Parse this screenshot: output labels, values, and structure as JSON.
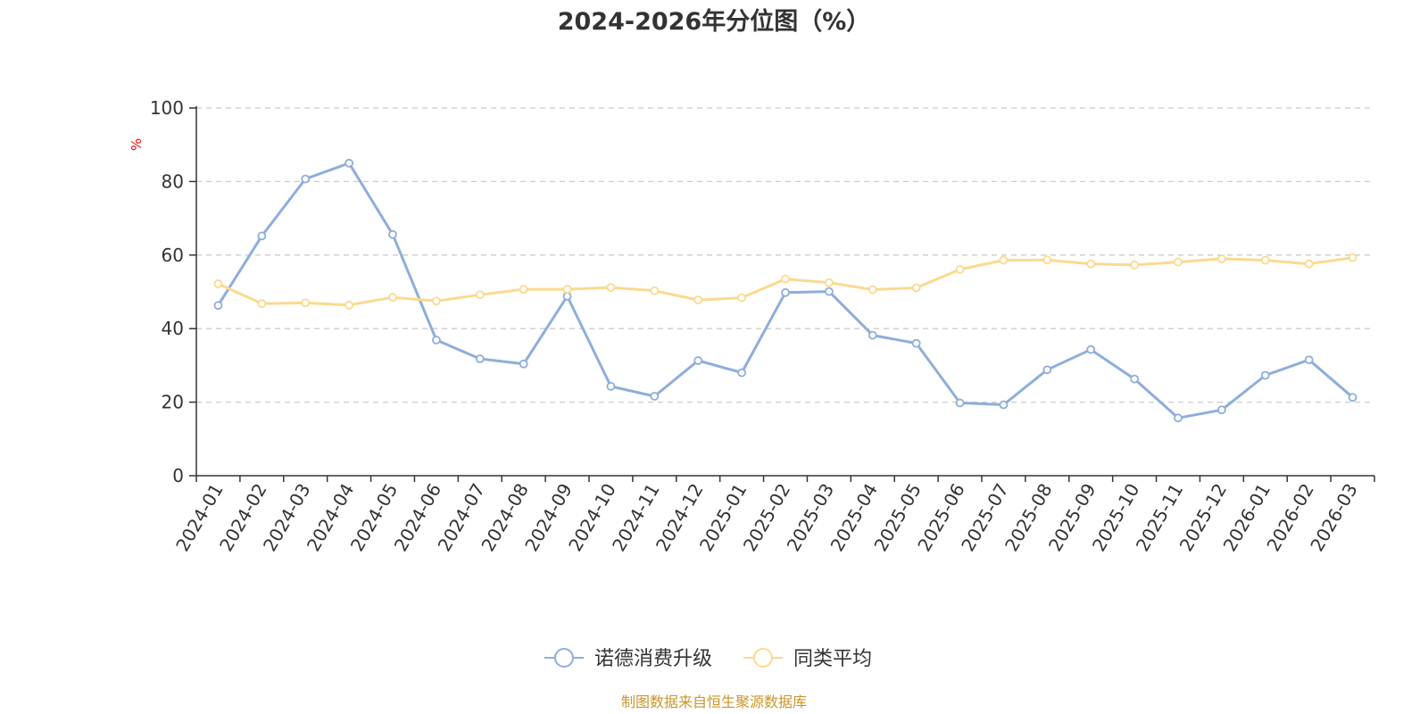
{
  "chart_data": {
    "type": "line",
    "title": "2024-2026年分位图（%）",
    "ylabel": "%",
    "xlabel": "",
    "ylim": [
      0,
      100
    ],
    "yticks": [
      0,
      20,
      40,
      60,
      80,
      100
    ],
    "grid": true,
    "legend_position": "bottom",
    "categories": [
      "2024-01",
      "2024-02",
      "2024-03",
      "2024-04",
      "2024-05",
      "2024-06",
      "2024-07",
      "2024-08",
      "2024-09",
      "2024-10",
      "2024-11",
      "2024-12",
      "2025-01",
      "2025-02",
      "2025-03",
      "2025-04",
      "2025-05",
      "2025-06",
      "2025-07",
      "2025-08",
      "2025-09",
      "2025-10",
      "2025-11",
      "2025-12",
      "2026-01",
      "2026-02",
      "2026-03"
    ],
    "series": [
      {
        "name": "诺德消费升级",
        "color": "#8eaedb",
        "values": [
          46.3,
          65.2,
          80.7,
          85.0,
          65.6,
          36.9,
          31.8,
          30.4,
          48.8,
          24.3,
          21.6,
          31.3,
          28.0,
          49.8,
          50.1,
          38.2,
          36.0,
          19.8,
          19.3,
          28.8,
          34.3,
          26.3,
          15.7,
          17.9,
          27.3,
          31.5,
          21.3
        ]
      },
      {
        "name": "同类平均",
        "color": "#fcd98e",
        "values": [
          52.2,
          46.8,
          47.0,
          46.4,
          48.5,
          47.5,
          49.2,
          50.7,
          50.7,
          51.2,
          50.3,
          47.8,
          48.4,
          53.5,
          52.5,
          50.6,
          51.1,
          56.1,
          58.6,
          58.7,
          57.6,
          57.3,
          58.1,
          59.0,
          58.6,
          57.6,
          59.3
        ]
      }
    ]
  },
  "colors": {
    "axis": "#333333",
    "grid": "#cccccc",
    "unit_label": "#ff0000",
    "source_text": "#c8962d"
  },
  "source": "制图数据来自恒生聚源数据库"
}
